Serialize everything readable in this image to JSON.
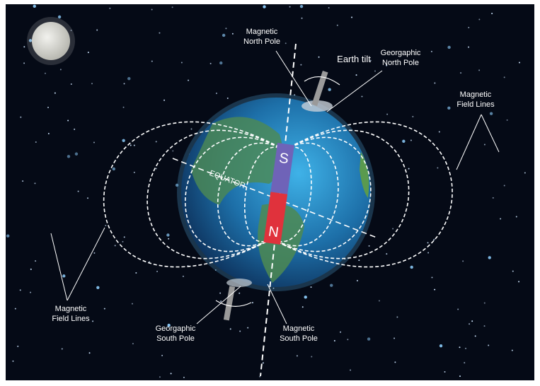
{
  "labels": [
    {
      "lines": [
        "Magnetic",
        "North Pole"
      ]
    },
    {
      "lines": [
        "Earth tilt"
      ]
    },
    {
      "lines": [
        "Georgaphic",
        "North Pole"
      ]
    },
    {
      "lines": [
        "Magnetic",
        "Field Lines"
      ]
    },
    {
      "lines": [
        "Magnetic",
        "Field Lines"
      ]
    },
    {
      "lines": [
        "Georgaphic",
        "South Pole"
      ]
    },
    {
      "lines": [
        "Magnetic",
        "South Pole"
      ]
    }
  ],
  "equator": "EQUATOR",
  "magnet": {
    "top": "S",
    "bottom": "N"
  }
}
